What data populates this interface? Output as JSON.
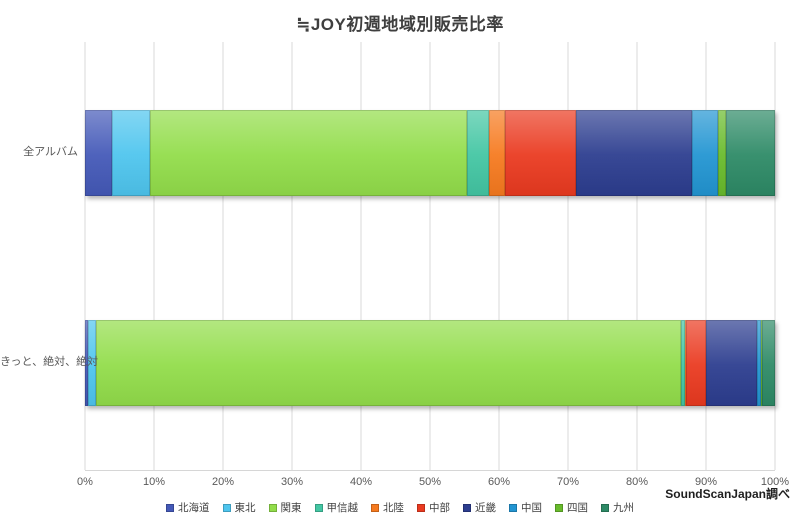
{
  "title": "≒JOY初週地域別販売比率",
  "source_note": "SoundScanJapan調べ",
  "chart_data": {
    "type": "bar",
    "orientation": "horizontal",
    "stacked": true,
    "grid": "vertical",
    "legend_position": "bottom",
    "xlim": [
      0,
      100
    ],
    "x_ticks": [
      "0%",
      "10%",
      "20%",
      "30%",
      "40%",
      "50%",
      "60%",
      "70%",
      "80%",
      "90%",
      "100%"
    ],
    "categories": [
      "全アルバム",
      "きっと、絶対、絶対"
    ],
    "series": [
      {
        "name": "北海道",
        "color": "#4459b8",
        "values": [
          3.9,
          0.4
        ]
      },
      {
        "name": "東北",
        "color": "#4ec5ee",
        "values": [
          5.5,
          1.2
        ]
      },
      {
        "name": "関東",
        "color": "#92dd4a",
        "values": [
          46.0,
          84.8
        ]
      },
      {
        "name": "甲信越",
        "color": "#43c6a3",
        "values": [
          3.2,
          0.6
        ]
      },
      {
        "name": "北陸",
        "color": "#f67a1f",
        "values": [
          2.2,
          0.1
        ]
      },
      {
        "name": "中部",
        "color": "#ea3a20",
        "values": [
          10.3,
          2.9
        ]
      },
      {
        "name": "近畿",
        "color": "#2c3d8f",
        "values": [
          16.8,
          7.4
        ]
      },
      {
        "name": "中国",
        "color": "#2295d2",
        "values": [
          3.8,
          0.6
        ]
      },
      {
        "name": "四国",
        "color": "#68bb2c",
        "values": [
          1.2,
          0.1
        ]
      },
      {
        "name": "九州",
        "color": "#2d8a66",
        "values": [
          7.1,
          1.9
        ]
      }
    ]
  }
}
